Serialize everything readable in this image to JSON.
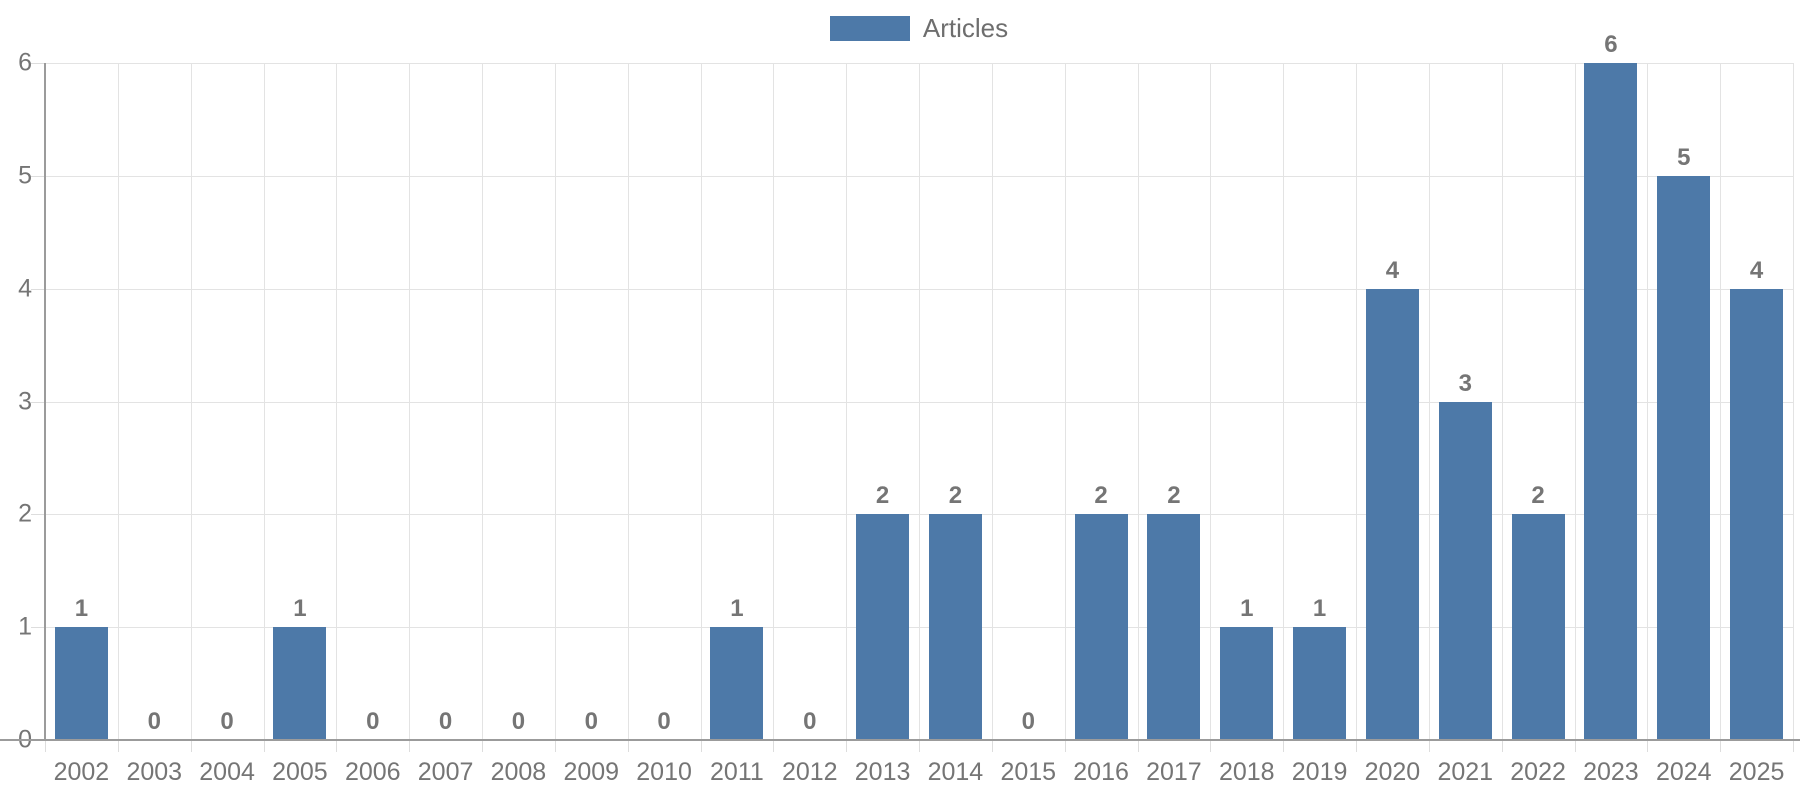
{
  "legend": {
    "label": "Articles"
  },
  "chart_data": {
    "type": "bar",
    "title": "",
    "series": [
      {
        "name": "Articles",
        "values": [
          1,
          0,
          0,
          1,
          0,
          0,
          0,
          0,
          0,
          1,
          0,
          2,
          2,
          0,
          2,
          2,
          1,
          1,
          4,
          3,
          2,
          6,
          5,
          4
        ]
      }
    ],
    "categories": [
      "2002",
      "2003",
      "2004",
      "2005",
      "2006",
      "2007",
      "2008",
      "2009",
      "2010",
      "2011",
      "2012",
      "2013",
      "2014",
      "2015",
      "2016",
      "2017",
      "2018",
      "2019",
      "2020",
      "2021",
      "2022",
      "2023",
      "2024",
      "2025"
    ],
    "xlabel": "",
    "ylabel": "",
    "ylim": [
      0,
      6
    ],
    "yticks": [
      0,
      1,
      2,
      3,
      4,
      5,
      6
    ],
    "grid": true,
    "legend_position": "top-center",
    "value_labels_shown": true,
    "colors": {
      "bar": "#4d79a8",
      "gridline": "#e3e3e3",
      "axis_line": "#9b9b9b",
      "tick_label": "#757575",
      "value_label": "#757575",
      "legend_text": "#6e6e6e"
    }
  }
}
